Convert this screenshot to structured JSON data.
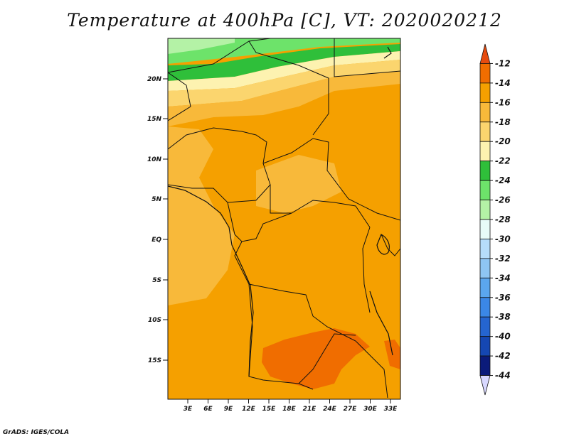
{
  "title": "Temperature at 400hPa [C], VT: 2020020212",
  "credit": "GrADS: IGES/COLA",
  "lat_labels": [
    "20N",
    "15N",
    "10N",
    "5N",
    "EQ",
    "5S",
    "10S",
    "15S"
  ],
  "lon_labels": [
    "3E",
    "6E",
    "9E",
    "12E",
    "15E",
    "18E",
    "21E",
    "24E",
    "27E",
    "30E",
    "33E"
  ],
  "colorbar": {
    "labels": [
      "-12",
      "-14",
      "-16",
      "-18",
      "-20",
      "-22",
      "-24",
      "-26",
      "-28",
      "-30",
      "-32",
      "-34",
      "-36",
      "-38",
      "-40",
      "-42",
      "-44"
    ],
    "colors": [
      "#e64b0f",
      "#f06d00",
      "#f5a000",
      "#f8b93a",
      "#fbd56e",
      "#fdf2b0",
      "#2fbf3a",
      "#6de36a",
      "#b4f2a6",
      "#e8fbf8",
      "#b6ddfa",
      "#8ec5f3",
      "#5ba6ee",
      "#3b87e6",
      "#2565d0",
      "#1547b2",
      "#0b1b7a",
      "#d8d8ff"
    ]
  }
}
